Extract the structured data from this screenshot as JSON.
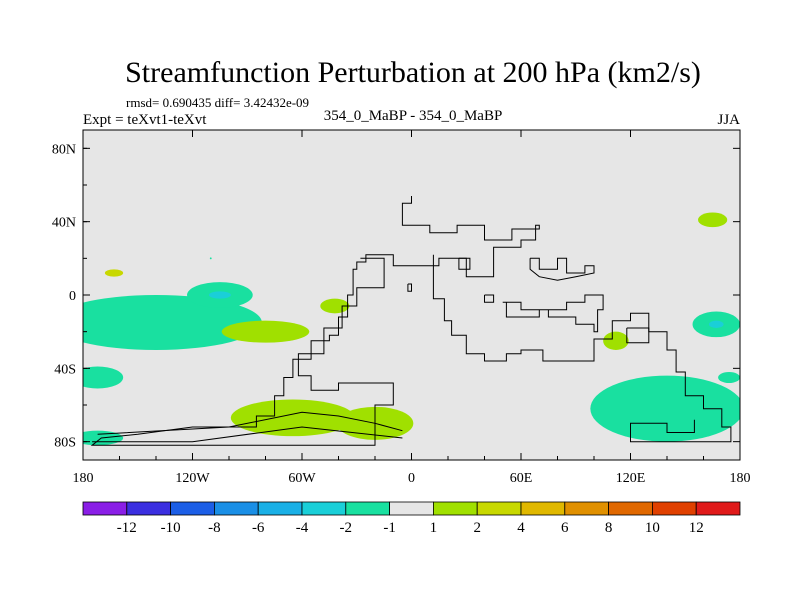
{
  "chart_data": {
    "type": "contour-map",
    "title": "Streamfunction Perturbation at 200 hPa (km2/s)",
    "stats": "rmsd= 0.690435 diff= 3.42432e-09",
    "experiment": "Expt = teXvt1-teXvt",
    "case": "354_0_MaBP - 354_0_MaBP",
    "season": "JJA",
    "xlim": [
      -180,
      180
    ],
    "ylim": [
      -90,
      90
    ],
    "x_ticks": [
      {
        "value": -180,
        "label": "180"
      },
      {
        "value": -120,
        "label": "120W"
      },
      {
        "value": -60,
        "label": "60W"
      },
      {
        "value": 0,
        "label": "0"
      },
      {
        "value": 60,
        "label": "60E"
      },
      {
        "value": 120,
        "label": "120E"
      },
      {
        "value": 180,
        "label": "180"
      }
    ],
    "y_ticks": [
      {
        "value": 80,
        "label": "80N"
      },
      {
        "value": 40,
        "label": "40N"
      },
      {
        "value": 0,
        "label": "0"
      },
      {
        "value": -40,
        "label": "40S"
      },
      {
        "value": -80,
        "label": "80S"
      }
    ],
    "background_color": "#e6e6e6",
    "colorbar": {
      "colors": [
        "#8a1ee6",
        "#3b2fe0",
        "#1c5ee6",
        "#1a8fe6",
        "#1ab0e6",
        "#1acfd8",
        "#19e0a0",
        "#e6e6e6",
        "#a0e000",
        "#c8d800",
        "#e0b800",
        "#e09000",
        "#e06800",
        "#e04000",
        "#e01a1a"
      ],
      "labels": [
        "-12",
        "-10",
        "-8",
        "-6",
        "-4",
        "-2",
        "-1",
        "1",
        "2",
        "4",
        "6",
        "8",
        "10",
        "12"
      ]
    },
    "anomalies": [
      {
        "lon": -140,
        "lat": -15,
        "rlon": 58,
        "rlat": 15,
        "value": 0.3,
        "level": -1
      },
      {
        "lon": -172,
        "lat": -45,
        "rlon": 14,
        "rlat": 6,
        "value": 0.4,
        "level": -1
      },
      {
        "lon": -172,
        "lat": -78,
        "rlon": 14,
        "rlat": 4,
        "value": 0.3,
        "level": -1
      },
      {
        "lon": -163,
        "lat": 12,
        "rlon": 5,
        "rlat": 2,
        "value": 0.6,
        "level": 2
      },
      {
        "lon": -105,
        "lat": 0,
        "rlon": 18,
        "rlat": 7,
        "value": -1.2,
        "level": -1
      },
      {
        "lon": -105,
        "lat": 0,
        "rlon": 6,
        "rlat": 2,
        "value": -2.5,
        "level": -2
      },
      {
        "lon": -80,
        "lat": -20,
        "rlon": 24,
        "rlat": 6,
        "value": 0.6,
        "level": 1
      },
      {
        "lon": -65,
        "lat": -67,
        "rlon": 34,
        "rlat": 10,
        "value": 1.5,
        "level": 1
      },
      {
        "lon": -20,
        "lat": -70,
        "rlon": 21,
        "rlat": 9,
        "value": 1.5,
        "level": 1
      },
      {
        "lon": -42,
        "lat": -6,
        "rlon": 8,
        "rlat": 4,
        "value": 0.6,
        "level": 1
      },
      {
        "lon": -110,
        "lat": 20,
        "rlon": 0.5,
        "rlat": 0.5,
        "value": -0.9,
        "level": -1
      },
      {
        "lon": 112,
        "lat": -25,
        "rlon": 7,
        "rlat": 5,
        "value": 0.6,
        "level": 1
      },
      {
        "lon": 165,
        "lat": 41,
        "rlon": 8,
        "rlat": 4,
        "value": 0.6,
        "level": 1
      },
      {
        "lon": 167,
        "lat": -16,
        "rlon": 13,
        "rlat": 7,
        "value": -1.2,
        "level": -1
      },
      {
        "lon": 167,
        "lat": -16,
        "rlon": 4,
        "rlat": 2,
        "value": -2.5,
        "level": -2
      },
      {
        "lon": 174,
        "lat": -45,
        "rlon": 6,
        "rlat": 3,
        "value": -0.6,
        "level": -1
      },
      {
        "lon": 140,
        "lat": -62,
        "rlon": 42,
        "rlat": 18,
        "value": -1.3,
        "level": -1
      }
    ],
    "coastline_outline": [
      [
        [
          0,
          54
        ],
        [
          0,
          50
        ],
        [
          -5,
          50
        ],
        [
          -5,
          38
        ],
        [
          10,
          38
        ],
        [
          10,
          34
        ],
        [
          25,
          34
        ],
        [
          25,
          38
        ],
        [
          40,
          38
        ],
        [
          40,
          30
        ],
        [
          55,
          30
        ],
        [
          55,
          36
        ],
        [
          70,
          36
        ],
        [
          70,
          38
        ],
        [
          68,
          38
        ],
        [
          68,
          30
        ],
        [
          60,
          30
        ],
        [
          60,
          26
        ],
        [
          45,
          26
        ],
        [
          45,
          10
        ],
        [
          30,
          10
        ],
        [
          30,
          20
        ],
        [
          15,
          20
        ],
        [
          15,
          16
        ],
        [
          -10,
          16
        ],
        [
          -10,
          22
        ],
        [
          -25,
          22
        ],
        [
          -25,
          18
        ],
        [
          -30,
          18
        ],
        [
          -30,
          14
        ],
        [
          -32,
          14
        ],
        [
          -32,
          0
        ],
        [
          -35,
          0
        ],
        [
          -35,
          -12
        ],
        [
          -40,
          -12
        ],
        [
          -40,
          -22
        ],
        [
          -45,
          -22
        ],
        [
          -45,
          -25
        ],
        [
          -55,
          -25
        ],
        [
          -55,
          -35
        ],
        [
          -65,
          -35
        ],
        [
          -65,
          -45
        ],
        [
          -70,
          -45
        ],
        [
          -70,
          -55
        ],
        [
          -75,
          -55
        ],
        [
          -75,
          -66
        ],
        [
          -85,
          -66
        ],
        [
          -85,
          -72
        ],
        [
          -120,
          -72
        ],
        [
          -150,
          -76
        ],
        [
          -170,
          -78
        ],
        [
          -175,
          -82
        ],
        [
          -20,
          -82
        ],
        [
          -20,
          -60
        ],
        [
          -10,
          -60
        ],
        [
          -10,
          -48
        ],
        [
          -40,
          -48
        ],
        [
          -40,
          -52
        ],
        [
          -55,
          -52
        ],
        [
          -55,
          -44
        ],
        [
          -62,
          -44
        ],
        [
          -62,
          -32
        ],
        [
          -48,
          -32
        ],
        [
          -48,
          -18
        ],
        [
          -38,
          -18
        ],
        [
          -38,
          -6
        ],
        [
          -30,
          -6
        ],
        [
          -30,
          4
        ],
        [
          -15,
          4
        ],
        [
          -15,
          20
        ],
        [
          -28,
          20
        ]
      ],
      [
        [
          12,
          22
        ],
        [
          12,
          -2
        ],
        [
          18,
          -2
        ],
        [
          18,
          -14
        ],
        [
          22,
          -14
        ],
        [
          22,
          -22
        ],
        [
          30,
          -22
        ],
        [
          30,
          -32
        ],
        [
          40,
          -32
        ],
        [
          40,
          -36
        ],
        [
          52,
          -36
        ],
        [
          52,
          -32
        ],
        [
          60,
          -32
        ],
        [
          60,
          -30
        ],
        [
          72,
          -30
        ],
        [
          72,
          -36
        ],
        [
          100,
          -36
        ],
        [
          100,
          -24
        ],
        [
          110,
          -24
        ],
        [
          110,
          -14
        ],
        [
          120,
          -14
        ],
        [
          120,
          -10
        ],
        [
          130,
          -10
        ],
        [
          130,
          -20
        ],
        [
          140,
          -20
        ],
        [
          140,
          -30
        ],
        [
          145,
          -30
        ],
        [
          145,
          -42
        ],
        [
          150,
          -42
        ],
        [
          150,
          -55
        ],
        [
          160,
          -55
        ],
        [
          160,
          -62
        ],
        [
          170,
          -62
        ],
        [
          170,
          -72
        ],
        [
          175,
          -72
        ],
        [
          175,
          -80
        ],
        [
          120,
          -80
        ],
        [
          120,
          -70
        ],
        [
          140,
          -70
        ],
        [
          140,
          -75
        ],
        [
          155,
          -75
        ],
        [
          155,
          -68
        ]
      ],
      [
        [
          50,
          -4
        ],
        [
          60,
          -4
        ],
        [
          60,
          -8
        ],
        [
          75,
          -8
        ],
        [
          75,
          -12
        ],
        [
          90,
          -12
        ],
        [
          90,
          -16
        ],
        [
          100,
          -16
        ],
        [
          100,
          -20
        ],
        [
          102,
          -20
        ],
        [
          102,
          -8
        ],
        [
          105,
          -8
        ],
        [
          105,
          0
        ],
        [
          95,
          0
        ],
        [
          95,
          -4
        ],
        [
          85,
          -4
        ],
        [
          85,
          -8
        ],
        [
          70,
          -8
        ],
        [
          70,
          -12
        ],
        [
          52,
          -12
        ],
        [
          52,
          -4
        ]
      ],
      [
        [
          65,
          20
        ],
        [
          70,
          20
        ],
        [
          70,
          14
        ],
        [
          80,
          14
        ],
        [
          80,
          20
        ],
        [
          85,
          20
        ],
        [
          85,
          12
        ],
        [
          95,
          12
        ],
        [
          95,
          16
        ],
        [
          100,
          16
        ],
        [
          100,
          12
        ],
        [
          90,
          10
        ],
        [
          80,
          8
        ],
        [
          70,
          10
        ],
        [
          65,
          14
        ],
        [
          65,
          20
        ]
      ],
      [
        [
          118,
          -18
        ],
        [
          130,
          -18
        ],
        [
          130,
          -26
        ],
        [
          118,
          -26
        ],
        [
          118,
          -18
        ]
      ],
      [
        [
          -172,
          -76
        ],
        [
          -100,
          -72
        ],
        [
          -60,
          -64
        ],
        [
          -40,
          -66
        ],
        [
          -20,
          -70
        ],
        [
          -5,
          -74
        ]
      ],
      [
        [
          -5,
          -78
        ],
        [
          -60,
          -72
        ],
        [
          -120,
          -80
        ],
        [
          -175,
          -80
        ]
      ],
      [
        [
          40,
          0
        ],
        [
          45,
          0
        ],
        [
          45,
          -4
        ],
        [
          40,
          -4
        ],
        [
          40,
          0
        ]
      ],
      [
        [
          -2,
          6
        ],
        [
          0,
          6
        ],
        [
          0,
          2
        ],
        [
          -2,
          2
        ],
        [
          -2,
          6
        ]
      ],
      [
        [
          26,
          20
        ],
        [
          32,
          20
        ],
        [
          32,
          14
        ],
        [
          26,
          14
        ],
        [
          26,
          20
        ]
      ]
    ]
  }
}
